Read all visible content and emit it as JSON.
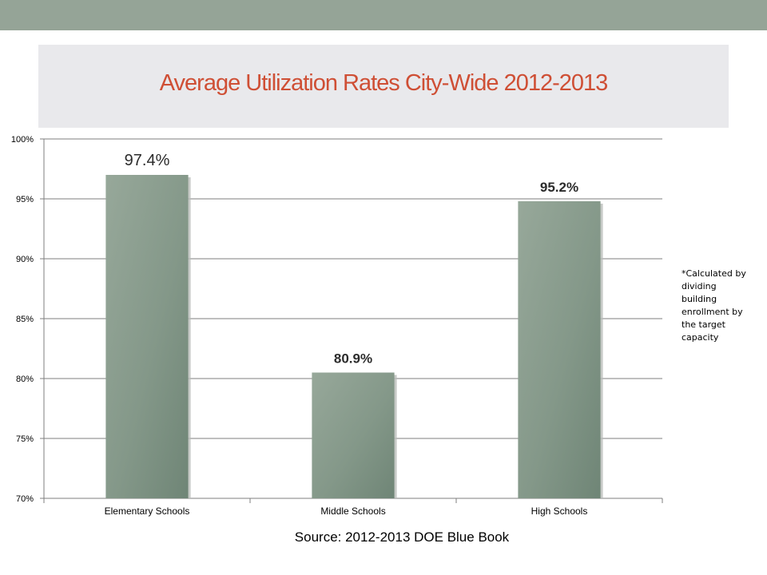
{
  "slide": {
    "title": "Average Utilization Rates City-Wide 2012-2013",
    "note": "*Calculated by dividing building enrollment by the target capacity",
    "source": "Source: 2012-2013 DOE Blue Book"
  },
  "colors": {
    "top_bar": "#95a497",
    "title_box": "#e9e9ec",
    "title_text": "#cf4f35",
    "bar_light": "#94a497",
    "bar_dark": "#6f8576"
  },
  "chart_data": {
    "type": "bar",
    "categories": [
      "Elementary Schools",
      "Middle Schools",
      "High Schools"
    ],
    "values": [
      97.4,
      80.9,
      95.2
    ],
    "data_labels": [
      "97.4%",
      "80.9%",
      "95.2%"
    ],
    "ylim": [
      70,
      100
    ],
    "yticks": [
      70,
      75,
      80,
      85,
      90,
      95,
      100
    ],
    "ytick_labels": [
      "70%",
      "75%",
      "80%",
      "85%",
      "90%",
      "95%",
      "100%"
    ],
    "grid": true,
    "legend": "none"
  }
}
